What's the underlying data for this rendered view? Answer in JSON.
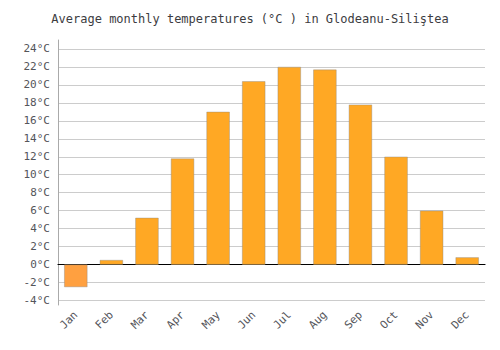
{
  "chart_data": {
    "type": "bar",
    "title": "Average monthly temperatures (°C ) in Glodeanu-Siliştea",
    "categories": [
      "Jan",
      "Feb",
      "Mar",
      "Apr",
      "May",
      "Jun",
      "Jul",
      "Aug",
      "Sep",
      "Oct",
      "Nov",
      "Dec"
    ],
    "values": [
      -2.5,
      0.5,
      5.2,
      11.8,
      17.0,
      20.4,
      22.0,
      21.7,
      17.8,
      12.0,
      6.0,
      0.8
    ],
    "colors": [
      "#FFA040",
      "#FFA824",
      "#FFA824",
      "#FFA824",
      "#FFA824",
      "#FFA824",
      "#FFA824",
      "#FFA824",
      "#FFA824",
      "#FFA824",
      "#FFA824",
      "#FFA824"
    ],
    "ylim": [
      -4.5,
      25
    ],
    "yticks": [
      {
        "value": -4,
        "label": "-4°C"
      },
      {
        "value": -2,
        "label": "-2°C"
      },
      {
        "value": 0,
        "label": "0°C"
      },
      {
        "value": 2,
        "label": "2°C"
      },
      {
        "value": 4,
        "label": "4°C"
      },
      {
        "value": 6,
        "label": "6°C"
      },
      {
        "value": 8,
        "label": "8°C"
      },
      {
        "value": 10,
        "label": "10°C"
      },
      {
        "value": 12,
        "label": "12°C"
      },
      {
        "value": 14,
        "label": "14°C"
      },
      {
        "value": 16,
        "label": "16°C"
      },
      {
        "value": 18,
        "label": "18°C"
      },
      {
        "value": 20,
        "label": "20°C"
      },
      {
        "value": 22,
        "label": "22°C"
      },
      {
        "value": 24,
        "label": "24°C"
      }
    ],
    "grid": true
  }
}
